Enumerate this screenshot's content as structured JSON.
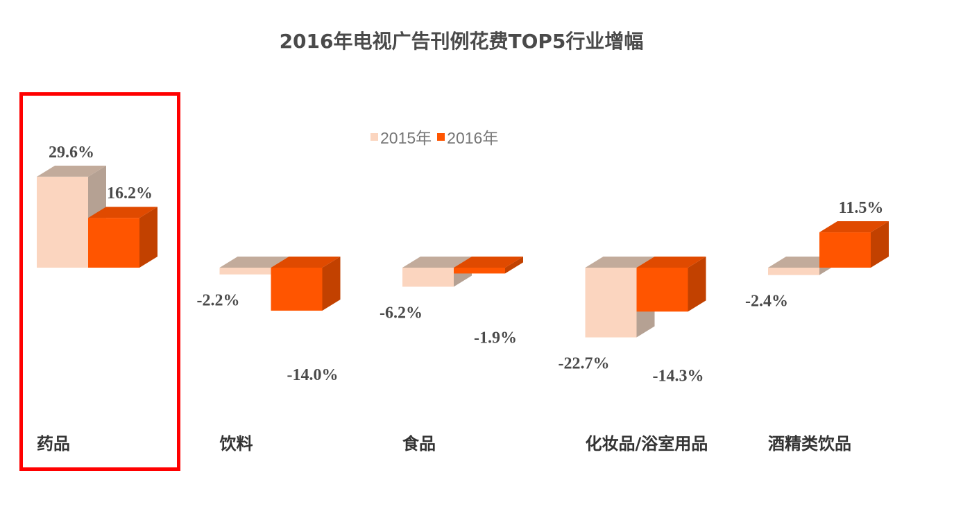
{
  "chart_data": {
    "type": "bar",
    "title": "2016年电视广告刊例花费TOP5行业增幅",
    "categories": [
      "药品",
      "饮料",
      "食品",
      "化妆品/浴室用品",
      "酒精类饮品"
    ],
    "series": [
      {
        "name": "2015年",
        "values": [
          29.6,
          -2.2,
          -6.2,
          -22.7,
          -2.4
        ],
        "labels": [
          "29.6%",
          "-2.2%",
          "-6.2%",
          "-22.7%",
          "-2.4%"
        ],
        "color": "#fbd5bf"
      },
      {
        "name": "2016年",
        "values": [
          16.2,
          -14.0,
          -1.9,
          -14.3,
          11.5
        ],
        "labels": [
          "16.2%",
          "-14.0%",
          "-1.9%",
          "-14.3%",
          "11.5%"
        ],
        "color": "#ff5500"
      }
    ],
    "style": "3d-column",
    "highlighted_category": "药品",
    "highlight_color": "#ff0000",
    "legend_position": "top-center",
    "grid": false
  }
}
